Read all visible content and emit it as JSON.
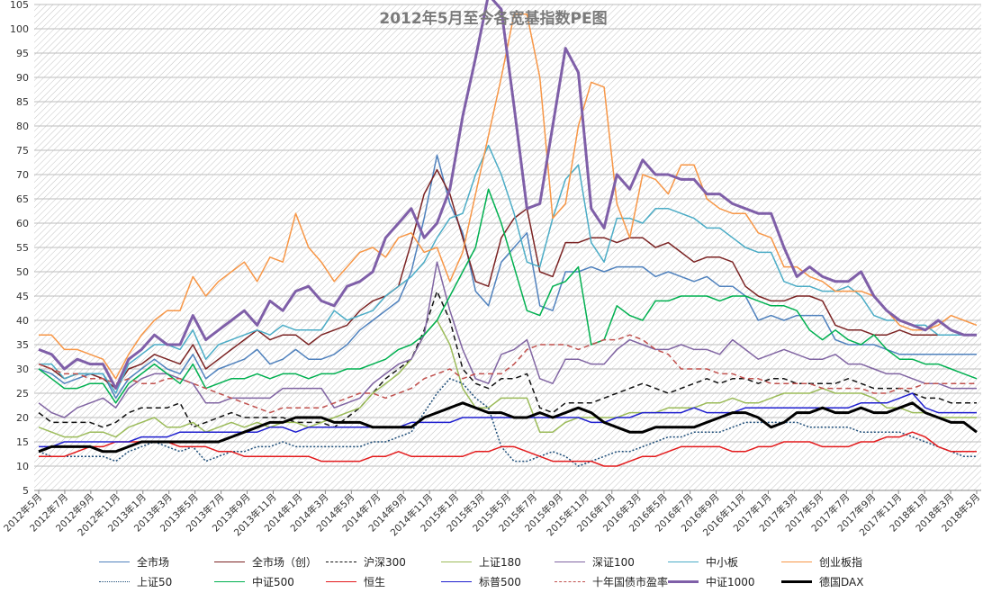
{
  "chart_data": {
    "type": "line",
    "title": "2012年5月至今各宽基指数PE图",
    "ylim": [
      5,
      105
    ],
    "yticks": [
      5,
      10,
      15,
      20,
      25,
      30,
      35,
      40,
      45,
      50,
      55,
      60,
      65,
      70,
      75,
      80,
      85,
      90,
      95,
      100,
      105
    ],
    "grid": true,
    "legend_position": "bottom",
    "x_tick_labels": [
      "2012年5月",
      "2012年7月",
      "2012年9月",
      "2012年11月",
      "2013年1月",
      "2013年3月",
      "2013年5月",
      "2013年7月",
      "2013年9月",
      "2013年11月",
      "2014年1月",
      "2014年3月",
      "2014年5月",
      "2014年7月",
      "2014年9月",
      "2014年11月",
      "2015年1月",
      "2015年3月",
      "2015年5月",
      "2015年7月",
      "2015年9月",
      "2015年11月",
      "2016年1月",
      "2016年3月",
      "2016年5月",
      "2016年7月",
      "2016年9月",
      "2016年11月",
      "2017年1月",
      "2017年3月",
      "2017年5月",
      "2017年7月",
      "2017年9月",
      "2017年11月",
      "2018年1月",
      "2018年3月",
      "2018年5月"
    ],
    "series": [
      {
        "name": "全市场",
        "color": "#4f81bd",
        "dash": "solid",
        "width": 1.5,
        "values": [
          30,
          29,
          27,
          28,
          29,
          29,
          24,
          28,
          30,
          32,
          30,
          29,
          33,
          28,
          30,
          31,
          32,
          34,
          31,
          32,
          34,
          32,
          32,
          33,
          35,
          38,
          40,
          42,
          44,
          50,
          61,
          74,
          64,
          58,
          46,
          43,
          52,
          55,
          58,
          43,
          42,
          50,
          50,
          51,
          50,
          51,
          51,
          51,
          49,
          50,
          49,
          48,
          49,
          47,
          47,
          45,
          40,
          41,
          40,
          41,
          41,
          41,
          36,
          35,
          35,
          35,
          34,
          33,
          33,
          33,
          33,
          33,
          33,
          33
        ]
      },
      {
        "name": "全市场（创）",
        "color": "#7b2323",
        "dash": "solid",
        "width": 1.5,
        "values": [
          31,
          30,
          28,
          29,
          29,
          28,
          26,
          30,
          31,
          33,
          32,
          31,
          35,
          30,
          32,
          34,
          36,
          38,
          36,
          37,
          37,
          35,
          37,
          38,
          39,
          42,
          44,
          45,
          47,
          56,
          66,
          71,
          66,
          57,
          48,
          47,
          57,
          61,
          63,
          50,
          49,
          56,
          56,
          57,
          57,
          56,
          57,
          57,
          55,
          56,
          54,
          52,
          53,
          53,
          52,
          47,
          45,
          44,
          44,
          45,
          45,
          44,
          39,
          38,
          38,
          37,
          37,
          38,
          37,
          37,
          37,
          37,
          37,
          37
        ]
      },
      {
        "name": "沪深300",
        "color": "#111111",
        "dash": "dash",
        "width": 1.5,
        "values": [
          21,
          19,
          19,
          19,
          19,
          18,
          19,
          21,
          22,
          22,
          22,
          23,
          18,
          19,
          20,
          21,
          20,
          20,
          20,
          20,
          19,
          19,
          19,
          18,
          20,
          22,
          25,
          28,
          30,
          32,
          38,
          46,
          40,
          30,
          27,
          26,
          28,
          28,
          29,
          22,
          21,
          23,
          23,
          23,
          24,
          25,
          26,
          27,
          26,
          25,
          26,
          27,
          28,
          27,
          28,
          28,
          27,
          28,
          28,
          27,
          27,
          27,
          27,
          28,
          27,
          26,
          26,
          26,
          25,
          24,
          24,
          23,
          23,
          23
        ]
      },
      {
        "name": "上证180",
        "color": "#9bbb59",
        "dash": "solid",
        "width": 1.5,
        "values": [
          18,
          17,
          16,
          16,
          17,
          17,
          16,
          18,
          19,
          20,
          18,
          18,
          19,
          17,
          18,
          19,
          18,
          19,
          18,
          19,
          19,
          18,
          19,
          20,
          21,
          22,
          25,
          27,
          29,
          32,
          37,
          40,
          35,
          26,
          22,
          22,
          24,
          24,
          24,
          17,
          17,
          19,
          20,
          20,
          20,
          20,
          21,
          21,
          21,
          22,
          22,
          22,
          23,
          23,
          24,
          23,
          23,
          24,
          25,
          25,
          25,
          26,
          25,
          25,
          25,
          24,
          22,
          22,
          21,
          21,
          20,
          20,
          20,
          20
        ]
      },
      {
        "name": "深证100",
        "color": "#8064a2",
        "dash": "solid",
        "width": 1.5,
        "values": [
          23,
          21,
          20,
          22,
          23,
          24,
          22,
          26,
          28,
          29,
          29,
          28,
          27,
          23,
          23,
          24,
          24,
          24,
          24,
          26,
          26,
          26,
          26,
          22,
          23,
          24,
          27,
          29,
          31,
          32,
          37,
          52,
          42,
          34,
          28,
          27,
          33,
          34,
          36,
          28,
          27,
          32,
          32,
          31,
          31,
          34,
          36,
          35,
          34,
          34,
          35,
          34,
          34,
          33,
          36,
          34,
          32,
          33,
          34,
          33,
          32,
          32,
          33,
          31,
          31,
          30,
          29,
          29,
          28,
          27,
          27,
          26,
          26,
          26
        ]
      },
      {
        "name": "中小板",
        "color": "#4bacc6",
        "dash": "solid",
        "width": 1.5,
        "values": [
          31,
          31,
          28,
          29,
          29,
          29,
          25,
          31,
          33,
          35,
          35,
          34,
          38,
          32,
          35,
          36,
          37,
          38,
          37,
          39,
          38,
          38,
          38,
          42,
          40,
          41,
          42,
          45,
          47,
          49,
          52,
          57,
          61,
          62,
          70,
          76,
          70,
          62,
          52,
          51,
          61,
          69,
          72,
          56,
          52,
          61,
          61,
          60,
          63,
          63,
          62,
          61,
          59,
          59,
          57,
          55,
          54,
          54,
          48,
          47,
          47,
          46,
          46,
          47,
          45,
          41,
          40,
          40,
          39,
          39,
          37,
          37,
          37,
          37
        ]
      },
      {
        "name": "创业板指",
        "color": "#f79646",
        "dash": "solid",
        "width": 1.5,
        "values": [
          37,
          37,
          34,
          34,
          33,
          32,
          28,
          33,
          37,
          40,
          42,
          42,
          49,
          45,
          48,
          50,
          52,
          48,
          53,
          52,
          62,
          55,
          52,
          48,
          51,
          54,
          55,
          53,
          57,
          58,
          54,
          55,
          48,
          54,
          66,
          78,
          90,
          103,
          103,
          90,
          61,
          64,
          80,
          89,
          88,
          64,
          57,
          70,
          69,
          66,
          72,
          72,
          65,
          63,
          62,
          62,
          58,
          57,
          51,
          51,
          49,
          48,
          46,
          46,
          46,
          45,
          42,
          39,
          38,
          38,
          39,
          41,
          40,
          39
        ]
      },
      {
        "name": "上证50",
        "color": "#1f4e79",
        "dash": "dot",
        "width": 1.5,
        "values": [
          13,
          12,
          12,
          12,
          12,
          12,
          11,
          13,
          14,
          15,
          14,
          13,
          14,
          11,
          12,
          13,
          13,
          14,
          14,
          15,
          14,
          14,
          14,
          14,
          14,
          14,
          15,
          15,
          16,
          17,
          21,
          25,
          28,
          27,
          24,
          22,
          14,
          11,
          11,
          12,
          13,
          12,
          10,
          11,
          12,
          13,
          13,
          14,
          15,
          16,
          16,
          17,
          17,
          17,
          18,
          19,
          19,
          19,
          19,
          19,
          18,
          18,
          18,
          18,
          17,
          17,
          17,
          17,
          16,
          15,
          14,
          13,
          12,
          12
        ]
      },
      {
        "name": "中证500",
        "color": "#00b050",
        "dash": "solid",
        "width": 1.5,
        "values": [
          30,
          28,
          26,
          26,
          27,
          27,
          23,
          27,
          29,
          31,
          29,
          27,
          31,
          26,
          27,
          28,
          28,
          29,
          28,
          29,
          29,
          28,
          29,
          29,
          30,
          30,
          31,
          32,
          34,
          35,
          37,
          40,
          45,
          50,
          55,
          67,
          60,
          51,
          42,
          41,
          47,
          48,
          51,
          35,
          36,
          43,
          41,
          40,
          44,
          44,
          45,
          45,
          45,
          44,
          45,
          45,
          44,
          43,
          43,
          42,
          38,
          36,
          38,
          36,
          35,
          37,
          34,
          32,
          32,
          31,
          31,
          30,
          29,
          28
        ]
      },
      {
        "name": "恒生",
        "color": "#e31a1c",
        "dash": "solid",
        "width": 1.5,
        "values": [
          12,
          12,
          12,
          13,
          14,
          14,
          15,
          15,
          15,
          15,
          15,
          14,
          14,
          14,
          13,
          13,
          12,
          12,
          12,
          12,
          12,
          12,
          11,
          11,
          11,
          11,
          12,
          12,
          13,
          12,
          12,
          12,
          12,
          12,
          13,
          13,
          14,
          14,
          13,
          12,
          11,
          11,
          11,
          11,
          10,
          10,
          11,
          12,
          12,
          13,
          14,
          14,
          14,
          14,
          13,
          13,
          14,
          14,
          15,
          15,
          15,
          14,
          14,
          14,
          15,
          15,
          16,
          16,
          17,
          16,
          14,
          13,
          13,
          13
        ]
      },
      {
        "name": "标普500",
        "color": "#1f1fcf",
        "dash": "solid",
        "width": 1.5,
        "values": [
          14,
          14,
          15,
          15,
          15,
          15,
          15,
          15,
          16,
          16,
          16,
          17,
          17,
          17,
          17,
          17,
          17,
          17,
          18,
          18,
          17,
          18,
          18,
          18,
          18,
          18,
          18,
          18,
          18,
          19,
          19,
          19,
          19,
          20,
          20,
          20,
          20,
          20,
          20,
          20,
          20,
          20,
          20,
          19,
          19,
          20,
          20,
          21,
          21,
          21,
          21,
          22,
          21,
          21,
          21,
          22,
          22,
          22,
          22,
          22,
          22,
          22,
          22,
          22,
          23,
          23,
          23,
          24,
          25,
          22,
          21,
          21,
          21,
          21
        ]
      },
      {
        "name": "十年国债市盈率",
        "color": "#c0504d",
        "dash": "dash",
        "width": 1.5,
        "values": [
          31,
          30,
          29,
          29,
          28,
          28,
          27,
          28,
          27,
          27,
          28,
          28,
          27,
          26,
          25,
          24,
          23,
          22,
          21,
          22,
          22,
          22,
          22,
          23,
          24,
          25,
          25,
          24,
          25,
          26,
          28,
          29,
          30,
          28,
          29,
          29,
          29,
          31,
          34,
          35,
          35,
          35,
          34,
          35,
          36,
          36,
          37,
          36,
          34,
          33,
          30,
          30,
          30,
          29,
          29,
          28,
          28,
          27,
          27,
          27,
          27,
          26,
          26,
          26,
          26,
          25,
          25,
          26,
          26,
          27,
          27,
          27,
          27,
          27
        ]
      },
      {
        "name": "中证1000",
        "color": "#7f5fa8",
        "dash": "solid",
        "width": 3,
        "values": [
          34,
          33,
          30,
          32,
          31,
          31,
          26,
          32,
          34,
          37,
          35,
          35,
          41,
          36,
          38,
          40,
          42,
          39,
          44,
          42,
          46,
          47,
          44,
          43,
          47,
          48,
          50,
          57,
          60,
          63,
          57,
          60,
          67,
          82,
          94,
          107,
          104,
          84,
          63,
          64,
          80,
          96,
          91,
          63,
          59,
          70,
          67,
          73,
          70,
          70,
          69,
          69,
          66,
          66,
          64,
          63,
          62,
          62,
          55,
          49,
          51,
          49,
          48,
          48,
          50,
          45,
          42,
          40,
          39,
          38,
          40,
          38,
          37,
          37
        ]
      },
      {
        "name": "德国DAX",
        "color": "#000000",
        "dash": "solid",
        "width": 3,
        "values": [
          13,
          14,
          14,
          14,
          14,
          13,
          13,
          14,
          15,
          15,
          15,
          15,
          15,
          15,
          15,
          16,
          17,
          18,
          19,
          19,
          20,
          20,
          20,
          19,
          19,
          19,
          18,
          18,
          18,
          18,
          20,
          21,
          22,
          23,
          22,
          21,
          21,
          20,
          20,
          21,
          20,
          21,
          22,
          21,
          19,
          18,
          17,
          17,
          18,
          18,
          18,
          18,
          19,
          20,
          21,
          21,
          20,
          18,
          19,
          21,
          21,
          22,
          21,
          21,
          22,
          21,
          21,
          22,
          23,
          21,
          20,
          19,
          19,
          17
        ]
      }
    ]
  }
}
